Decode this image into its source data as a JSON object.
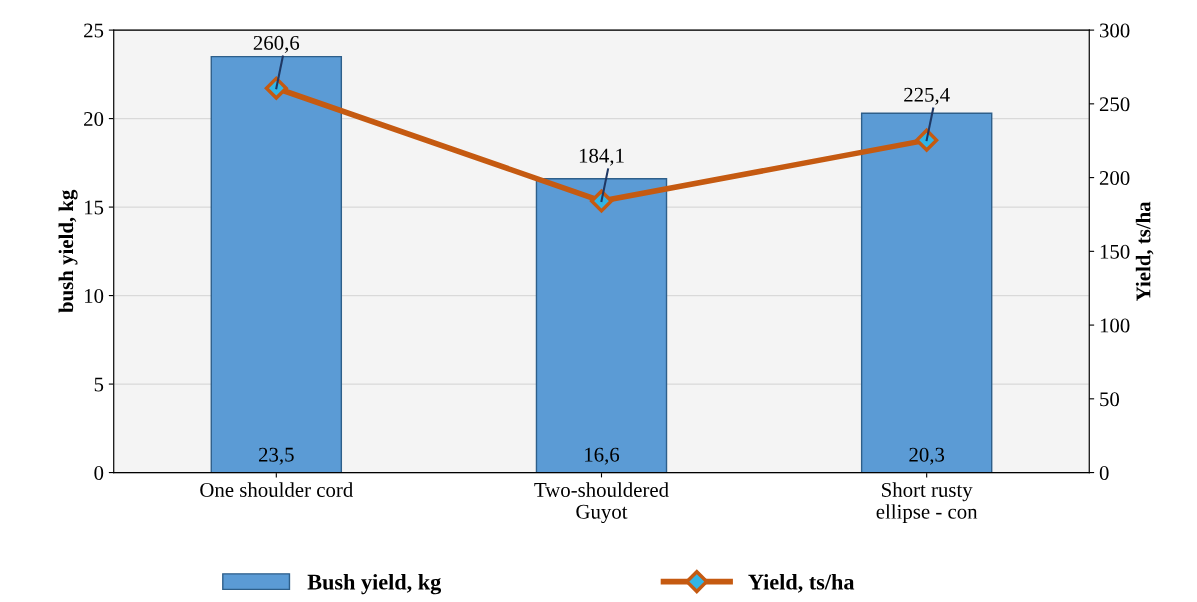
{
  "chart_data": {
    "type": "bar",
    "categories": [
      "One shoulder cord",
      "Two-shouldered\nGuyot",
      "Short rusty\nellipse - con"
    ],
    "ylabel": "bush yield, kg",
    "y2label": "Yield, ts/ha",
    "ylim": [
      0,
      25
    ],
    "yticks": [
      0,
      5,
      10,
      15,
      20,
      25
    ],
    "y2lim": [
      0,
      300
    ],
    "y2ticks": [
      0,
      50,
      100,
      150,
      200,
      250,
      300
    ],
    "series": [
      {
        "name": "Bush yield, kg",
        "color": "#5b9bd5",
        "values": [
          23.5,
          16.6,
          20.3
        ],
        "value_labels": [
          "23,5",
          "16,6",
          "20,3"
        ]
      },
      {
        "name": "Yield, ts/ha",
        "type": "line",
        "axis": "y2",
        "color": "#c55a11",
        "marker": "diamond",
        "values": [
          260.6,
          184.1,
          225.4
        ],
        "value_labels": [
          "260,6",
          "184,1",
          "225,4"
        ]
      }
    ],
    "grid": "y",
    "legend": "bottom"
  }
}
